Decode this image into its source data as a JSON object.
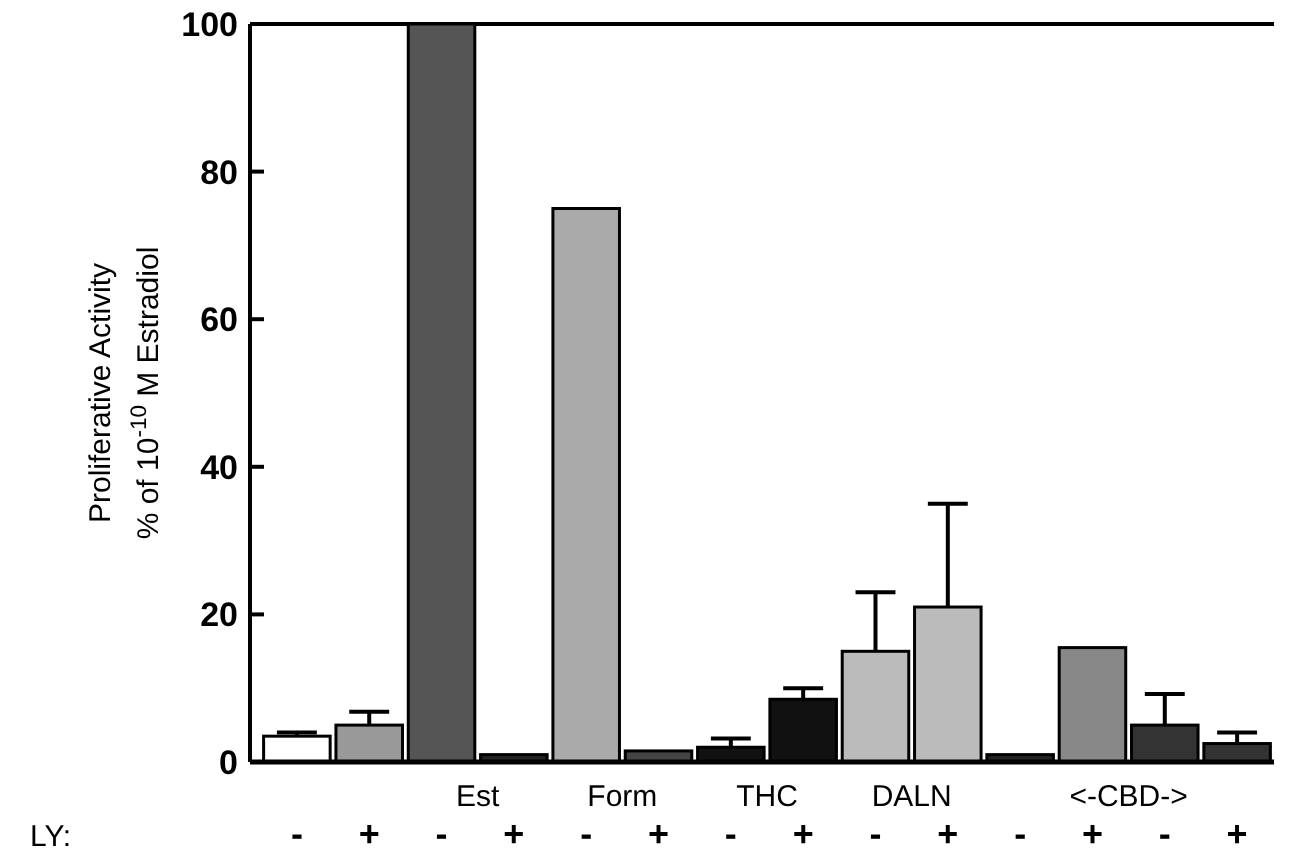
{
  "chart_data": {
    "type": "bar",
    "ylabel": "Proliferative Activity\n% of 10$^{-10}$ M Estradiol",
    "categories": [
      "-",
      "+",
      "-",
      "+",
      "-",
      "+",
      "-",
      "+",
      "-",
      "+",
      "-",
      "+",
      "-",
      "+"
    ],
    "values": [
      3.5,
      5,
      100,
      1,
      75,
      1.5,
      2,
      8.5,
      15,
      21,
      1,
      15.5,
      5,
      2.5
    ],
    "colors": [
      "#ffffff",
      "#999999",
      "#555555",
      "#222222",
      "#aaaaaa",
      "#444444",
      "#111111",
      "#111111",
      "#bbbbbb",
      "#bbbbbb",
      "#222222",
      "#888888",
      "#333333",
      "#333333"
    ],
    "errors": [
      [
        3.5,
        4
      ],
      [
        5,
        6.8
      ],
      null,
      null,
      null,
      null,
      [
        2,
        3.2
      ],
      [
        8.5,
        10
      ],
      [
        15,
        23
      ],
      [
        21,
        35
      ],
      null,
      null,
      [
        5,
        9.2
      ],
      [
        2.5,
        4
      ]
    ],
    "ylim": [
      0,
      100
    ],
    "yticks": [
      0,
      20,
      40,
      60,
      80,
      100
    ],
    "annotations": [
      "LY:",
      "Est",
      "Form",
      "THC",
      "DALN",
      "<-CBD->"
    ]
  }
}
